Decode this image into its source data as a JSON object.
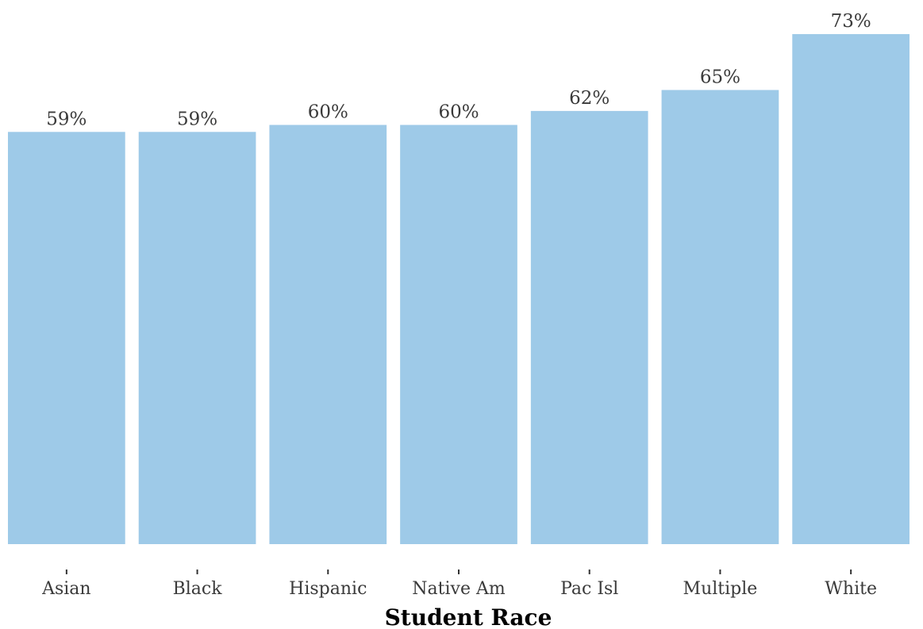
{
  "chart_data": {
    "type": "bar",
    "categories": [
      "Asian",
      "Black",
      "Hispanic",
      "Native Am",
      "Pac Isl",
      "Multiple",
      "White"
    ],
    "values": [
      59,
      59,
      60,
      60,
      62,
      65,
      73
    ],
    "value_labels": [
      "59%",
      "59%",
      "60%",
      "60%",
      "62%",
      "65%",
      "73%"
    ],
    "title": "",
    "xlabel": "Student Race",
    "ylabel": "",
    "ylim": [
      0,
      73
    ],
    "grid": false,
    "legend": "none",
    "bar_color": "#9ECAE8",
    "text_color": "#3a3a3a"
  }
}
